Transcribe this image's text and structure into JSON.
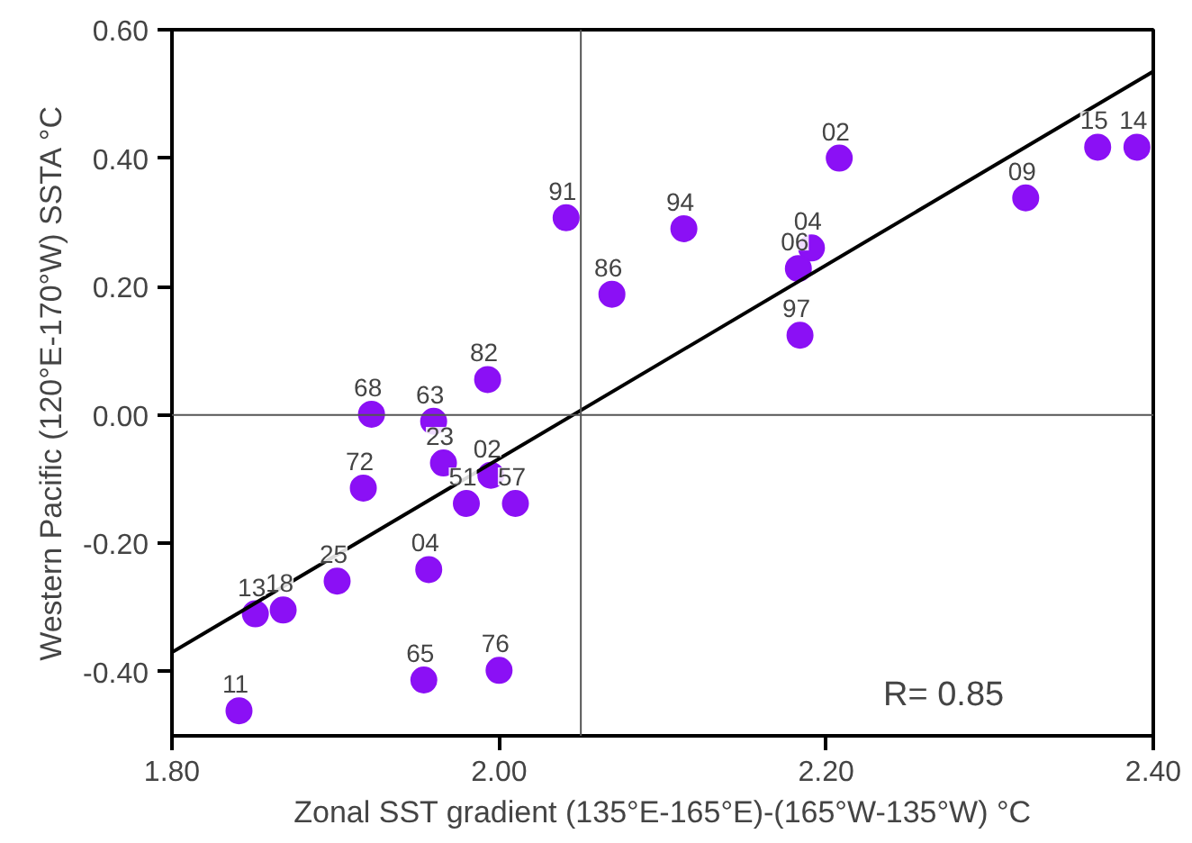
{
  "chart_data": {
    "type": "scatter",
    "xlabel": "Zonal SST gradient (135°E-165°E)-(165°W-135°W) °C",
    "ylabel": "Western Pacific (120°E-170°W) SSTA °C",
    "xlim": [
      1.8,
      2.4
    ],
    "ylim": [
      -0.5,
      0.6
    ],
    "xticks": [
      {
        "value": 1.8,
        "label": "1.80"
      },
      {
        "value": 2.0,
        "label": "2.00"
      },
      {
        "value": 2.2,
        "label": "2.20"
      },
      {
        "value": 2.4,
        "label": "2.40"
      }
    ],
    "yticks": [
      {
        "value": -0.4,
        "label": "-0.40"
      },
      {
        "value": -0.2,
        "label": "-0.20"
      },
      {
        "value": 0,
        "label": "0.00"
      },
      {
        "value": 0.2,
        "label": "0.20"
      },
      {
        "value": 0.4,
        "label": "0.40"
      },
      {
        "value": 0.6,
        "label": "0.60"
      }
    ],
    "series": [
      {
        "color": "#8b10f5",
        "marker": "circle",
        "x": [
          2.208,
          2.366,
          2.39,
          2.322,
          2.041,
          2.113,
          2.191,
          2.183,
          2.069,
          2.184,
          1.993,
          1.922,
          1.96,
          1.966,
          1.995,
          1.917,
          1.98,
          2.01,
          1.957,
          1.901,
          1.851,
          1.868,
          2.0,
          1.954,
          1.841
        ],
        "values": [
          0.4,
          0.417,
          0.417,
          0.338,
          0.307,
          0.29,
          0.26,
          0.228,
          0.188,
          0.124,
          0.055,
          0.001,
          -0.01,
          -0.075,
          -0.094,
          -0.114,
          -0.138,
          -0.138,
          -0.241,
          -0.259,
          -0.31,
          -0.304,
          -0.398,
          -0.413,
          -0.461
        ]
      },
      {
        "type": "line",
        "color": "#000000",
        "x": [
          1.8,
          2.4
        ],
        "values": [
          -0.37,
          0.535
        ]
      }
    ],
    "ref_lines": [
      {
        "axis": "x",
        "value": 2.05,
        "color": "#555555"
      },
      {
        "axis": "y",
        "value": 0,
        "color": "#555555"
      }
    ],
    "annotations": [
      {
        "text": "02",
        "x": 2.208,
        "y": 0.4
      },
      {
        "text": "15",
        "x": 2.366,
        "y": 0.417
      },
      {
        "text": "14",
        "x": 2.39,
        "y": 0.417
      },
      {
        "text": "09",
        "x": 2.322,
        "y": 0.338
      },
      {
        "text": "91",
        "x": 2.041,
        "y": 0.307
      },
      {
        "text": "94",
        "x": 2.113,
        "y": 0.29
      },
      {
        "text": "04",
        "x": 2.191,
        "y": 0.26
      },
      {
        "text": "06",
        "x": 2.183,
        "y": 0.228
      },
      {
        "text": "86",
        "x": 2.069,
        "y": 0.188
      },
      {
        "text": "97",
        "x": 2.184,
        "y": 0.124
      },
      {
        "text": "82",
        "x": 1.993,
        "y": 0.055
      },
      {
        "text": "68",
        "x": 1.922,
        "y": 0.001
      },
      {
        "text": "63",
        "x": 1.96,
        "y": -0.01
      },
      {
        "text": "23",
        "x": 1.966,
        "y": -0.075
      },
      {
        "text": "02",
        "x": 1.995,
        "y": -0.094
      },
      {
        "text": "72",
        "x": 1.917,
        "y": -0.114
      },
      {
        "text": "51",
        "x": 1.98,
        "y": -0.138
      },
      {
        "text": "57",
        "x": 2.01,
        "y": -0.138
      },
      {
        "text": "04",
        "x": 1.957,
        "y": -0.241
      },
      {
        "text": "25",
        "x": 1.901,
        "y": -0.259
      },
      {
        "text": "13",
        "x": 1.851,
        "y": -0.31
      },
      {
        "text": "18",
        "x": 1.868,
        "y": -0.304
      },
      {
        "text": "76",
        "x": 2.0,
        "y": -0.398
      },
      {
        "text": "65",
        "x": 1.954,
        "y": -0.413
      },
      {
        "text": "11",
        "x": 1.841,
        "y": -0.461
      },
      "R= 0.85"
    ],
    "grid": false
  }
}
